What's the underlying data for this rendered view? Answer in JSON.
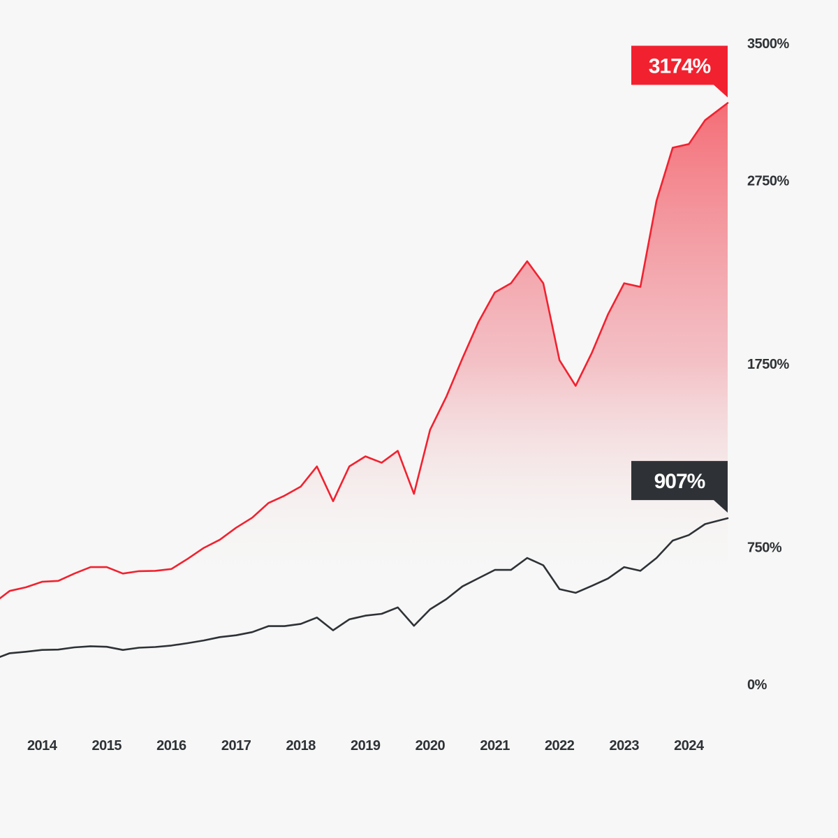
{
  "chart_data": {
    "type": "area",
    "x_tick_labels": [
      "2014",
      "2015",
      "2016",
      "2017",
      "2018",
      "2019",
      "2020",
      "2021",
      "2022",
      "2023",
      "2024"
    ],
    "y_tick_labels": [
      "0%",
      "750%",
      "1750%",
      "2750%",
      "3500%"
    ],
    "y_ticks": [
      0,
      750,
      1750,
      2750,
      3500
    ],
    "ylim": [
      0,
      3500
    ],
    "xlim": [
      2013.35,
      2024.6
    ],
    "grid": false,
    "series": [
      {
        "color": "#f2212f",
        "area_fill": true,
        "end_label": "3174%",
        "points": [
          [
            2013.35,
            470
          ],
          [
            2013.5,
            510
          ],
          [
            2013.75,
            530
          ],
          [
            2014.0,
            560
          ],
          [
            2014.25,
            565
          ],
          [
            2014.5,
            605
          ],
          [
            2014.75,
            640
          ],
          [
            2015.0,
            640
          ],
          [
            2015.25,
            605
          ],
          [
            2015.5,
            618
          ],
          [
            2015.75,
            620
          ],
          [
            2016.0,
            630
          ],
          [
            2016.25,
            685
          ],
          [
            2016.5,
            745
          ],
          [
            2016.75,
            790
          ],
          [
            2017.0,
            855
          ],
          [
            2017.25,
            910
          ],
          [
            2017.5,
            990
          ],
          [
            2017.75,
            1030
          ],
          [
            2018.0,
            1080
          ],
          [
            2018.25,
            1190
          ],
          [
            2018.5,
            1000
          ],
          [
            2018.75,
            1190
          ],
          [
            2019.0,
            1245
          ],
          [
            2019.25,
            1210
          ],
          [
            2019.5,
            1275
          ],
          [
            2019.75,
            1040
          ],
          [
            2020.0,
            1390
          ],
          [
            2020.25,
            1570
          ],
          [
            2020.5,
            1780
          ],
          [
            2020.75,
            1980
          ],
          [
            2021.0,
            2140
          ],
          [
            2021.25,
            2190
          ],
          [
            2021.5,
            2310
          ],
          [
            2021.75,
            2190
          ],
          [
            2022.0,
            1770
          ],
          [
            2022.25,
            1630
          ],
          [
            2022.5,
            1810
          ],
          [
            2022.75,
            2020
          ],
          [
            2023.0,
            2190
          ],
          [
            2023.25,
            2170
          ],
          [
            2023.5,
            2640
          ],
          [
            2023.75,
            2930
          ],
          [
            2024.0,
            2950
          ],
          [
            2024.25,
            3080
          ],
          [
            2024.6,
            3174
          ]
        ]
      },
      {
        "color": "#2e3236",
        "area_fill": false,
        "end_label": "907%",
        "points": [
          [
            2013.35,
            150
          ],
          [
            2013.5,
            170
          ],
          [
            2013.75,
            178
          ],
          [
            2014.0,
            188
          ],
          [
            2014.25,
            190
          ],
          [
            2014.5,
            202
          ],
          [
            2014.75,
            208
          ],
          [
            2015.0,
            205
          ],
          [
            2015.25,
            188
          ],
          [
            2015.5,
            200
          ],
          [
            2015.75,
            204
          ],
          [
            2016.0,
            212
          ],
          [
            2016.25,
            225
          ],
          [
            2016.5,
            240
          ],
          [
            2016.75,
            258
          ],
          [
            2017.0,
            268
          ],
          [
            2017.25,
            285
          ],
          [
            2017.5,
            318
          ],
          [
            2017.75,
            318
          ],
          [
            2018.0,
            330
          ],
          [
            2018.25,
            365
          ],
          [
            2018.5,
            295
          ],
          [
            2018.75,
            355
          ],
          [
            2019.0,
            375
          ],
          [
            2019.25,
            385
          ],
          [
            2019.5,
            420
          ],
          [
            2019.75,
            320
          ],
          [
            2020.0,
            410
          ],
          [
            2020.25,
            465
          ],
          [
            2020.5,
            535
          ],
          [
            2020.75,
            580
          ],
          [
            2021.0,
            625
          ],
          [
            2021.25,
            625
          ],
          [
            2021.5,
            690
          ],
          [
            2021.75,
            650
          ],
          [
            2022.0,
            520
          ],
          [
            2022.25,
            500
          ],
          [
            2022.5,
            538
          ],
          [
            2022.75,
            578
          ],
          [
            2023.0,
            640
          ],
          [
            2023.25,
            620
          ],
          [
            2023.5,
            690
          ],
          [
            2023.75,
            785
          ],
          [
            2024.0,
            815
          ],
          [
            2024.25,
            875
          ],
          [
            2024.6,
            907
          ]
        ]
      }
    ]
  }
}
